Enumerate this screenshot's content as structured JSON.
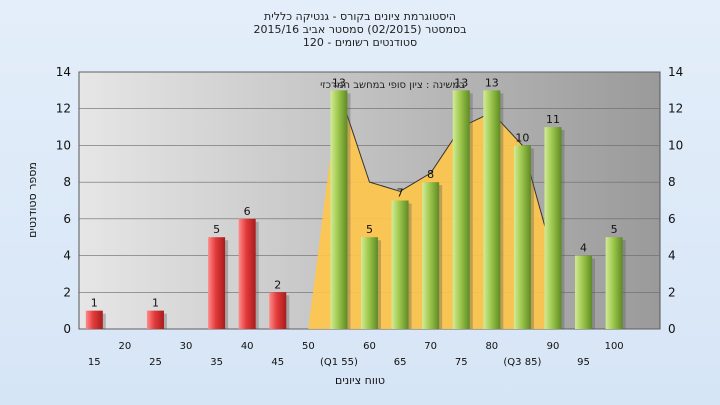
{
  "title_lines": [
    "היסטוגרמת ציונים בקורס - גנטיקה כללית",
    "בסמסטר  (02/2015)  סמסטר אביב 2015/16",
    "סטודנטים רשומים - 120"
  ],
  "colors": {
    "fail": "#e23a3a",
    "pass": "#9ec74d",
    "area": "#ffc64a",
    "plot_bg": "#b4b4b4"
  },
  "chart_data": {
    "type": "bar",
    "title": "היסטוגרמת ציונים בקורס - גנטיקה כללית",
    "xlabel": "טווח ציונים",
    "ylabel": "מספר סטודנטים",
    "ylim": [
      0,
      14
    ],
    "yticks": [
      0,
      2,
      4,
      6,
      8,
      10,
      12,
      14
    ],
    "grid": true,
    "top_ticks": [
      "20",
      "30",
      "40",
      "50",
      "60",
      "70",
      "80",
      "90",
      "100"
    ],
    "bottom_ticks": [
      "15",
      "25",
      "35",
      "45",
      "(Q1 55)",
      "65",
      "75",
      "(Q3 85)",
      "95"
    ],
    "bars": [
      {
        "x": 15,
        "value": 1,
        "label": "1",
        "group": "fail"
      },
      {
        "x": 25,
        "value": 1,
        "label": "1",
        "group": "fail"
      },
      {
        "x": 35,
        "value": 5,
        "label": "5",
        "group": "fail"
      },
      {
        "x": 40,
        "value": 6,
        "label": "6",
        "group": "fail"
      },
      {
        "x": 45,
        "value": 2,
        "label": "2",
        "group": "fail"
      },
      {
        "x": 55,
        "value": 13,
        "label": "13",
        "group": "pass"
      },
      {
        "x": 60,
        "value": 5,
        "label": "5",
        "group": "pass"
      },
      {
        "x": 65,
        "value": 7,
        "label": "7",
        "group": "pass"
      },
      {
        "x": 70,
        "value": 8,
        "label": "8",
        "group": "pass"
      },
      {
        "x": 75,
        "value": 13,
        "label": "13",
        "group": "pass"
      },
      {
        "x": 80,
        "value": 13,
        "label": "13",
        "group": "pass"
      },
      {
        "x": 85,
        "value": 10,
        "label": "10",
        "group": "pass"
      },
      {
        "x": 90,
        "value": 11,
        "label": "11",
        "group": "pass"
      },
      {
        "x": 95,
        "value": 4,
        "label": "4",
        "group": "pass"
      },
      {
        "x": 100,
        "value": 5,
        "label": "5",
        "group": "pass"
      }
    ],
    "area_series": {
      "name": "במשינה : ציון סופי במחשב המרכזי",
      "points": [
        [
          50,
          0
        ],
        [
          55,
          13
        ],
        [
          60,
          8
        ],
        [
          65,
          7.5
        ],
        [
          70,
          8.5
        ],
        [
          75,
          11
        ],
        [
          80,
          11.8
        ],
        [
          85,
          10
        ],
        [
          90,
          4
        ],
        [
          90,
          0
        ]
      ]
    }
  }
}
